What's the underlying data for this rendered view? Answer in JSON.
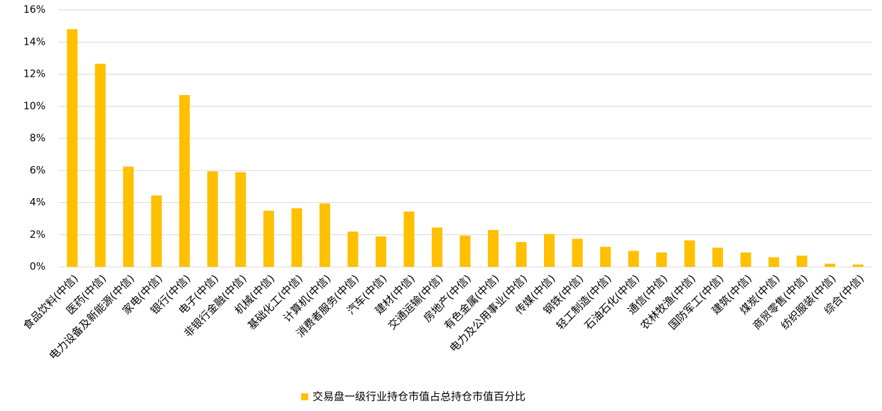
{
  "chart_data": {
    "type": "bar",
    "categories": [
      "食品饮料(中信)",
      "医药(中信)",
      "电力设备及新能源(中信)",
      "家电(中信)",
      "银行(中信)",
      "电子(中信)",
      "非银行金融(中信)",
      "机械(中信)",
      "基础化工(中信)",
      "计算机(中信)",
      "消费者服务(中信)",
      "汽车(中信)",
      "建材(中信)",
      "交通运输(中信)",
      "房地产(中信)",
      "有色金属(中信)",
      "电力及公用事业(中信)",
      "传媒(中信)",
      "钢铁(中信)",
      "轻工制造(中信)",
      "石油石化(中信)",
      "通信(中信)",
      "农林牧渔(中信)",
      "国防军工(中信)",
      "建筑(中信)",
      "煤炭(中信)",
      "商贸零售(中信)",
      "纺织服装(中信)",
      "综合(中信)"
    ],
    "series": [
      {
        "name": "交易盘一级行业持仓市值占总持仓市值百分比",
        "color": "#ffc000",
        "values": [
          14.8,
          12.65,
          6.25,
          4.45,
          10.7,
          5.95,
          5.9,
          3.5,
          3.65,
          3.95,
          2.2,
          1.9,
          3.45,
          2.45,
          1.95,
          2.3,
          1.55,
          2.05,
          1.75,
          1.25,
          1.0,
          0.9,
          1.65,
          1.2,
          0.9,
          0.6,
          0.7,
          0.2,
          0.15
        ]
      }
    ],
    "ylim": [
      0,
      16
    ],
    "yticks": [
      {
        "value": 0,
        "label": "0%"
      },
      {
        "value": 2,
        "label": "2%"
      },
      {
        "value": 4,
        "label": "4%"
      },
      {
        "value": 6,
        "label": "6%"
      },
      {
        "value": 8,
        "label": "8%"
      },
      {
        "value": 10,
        "label": "10%"
      },
      {
        "value": 12,
        "label": "12%"
      },
      {
        "value": 14,
        "label": "14%"
      },
      {
        "value": 16,
        "label": "16%"
      }
    ],
    "grid": true,
    "legend": "bottom"
  }
}
